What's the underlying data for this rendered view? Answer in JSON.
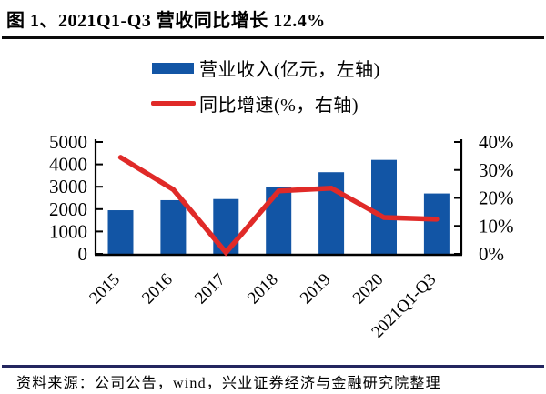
{
  "figure": {
    "title": "图 1、2021Q1-Q3 营收同比增长 12.4%",
    "source": "资料来源：公司公告，wind，兴业证券经济与金融研究院整理"
  },
  "legend": {
    "items": [
      {
        "label": "营业收入(亿元，左轴)",
        "swatch": "bar-swatch",
        "color": "#1255A5"
      },
      {
        "label": "同比增速(%，右轴)",
        "swatch": "line-swatch",
        "color": "#E02A28"
      }
    ]
  },
  "colors": {
    "bar": "#1255A5",
    "line": "#E02A28",
    "axis": "#000000",
    "text": "#000000",
    "title_rule": "#0A0A0A",
    "source_rule": "#23265F"
  },
  "chart_data": {
    "type": "bar",
    "title": "图 1、2021Q1-Q3 营收同比增长 12.4%",
    "categories": [
      "2015",
      "2016",
      "2017",
      "2018",
      "2019",
      "2020",
      "2021Q1-Q3"
    ],
    "series": [
      {
        "name": "营业收入(亿元，左轴)",
        "type": "bar",
        "axis": "left",
        "values": [
          1950,
          2400,
          2450,
          3000,
          3650,
          4200,
          2700
        ]
      },
      {
        "name": "同比增速(%，右轴)",
        "type": "line",
        "axis": "right",
        "values": [
          34.5,
          23,
          0.5,
          22.5,
          23.5,
          13,
          12.4
        ]
      }
    ],
    "left_axis": {
      "min": 0,
      "max": 5000,
      "step": 1000,
      "tick_labels": [
        "0",
        "1000",
        "2000",
        "3000",
        "4000",
        "5000"
      ]
    },
    "right_axis": {
      "min": 0,
      "max": 40,
      "step": 10,
      "tick_labels": [
        "0%",
        "10%",
        "20%",
        "30%",
        "40%"
      ]
    },
    "grid": false,
    "legend_position": "top-center"
  }
}
